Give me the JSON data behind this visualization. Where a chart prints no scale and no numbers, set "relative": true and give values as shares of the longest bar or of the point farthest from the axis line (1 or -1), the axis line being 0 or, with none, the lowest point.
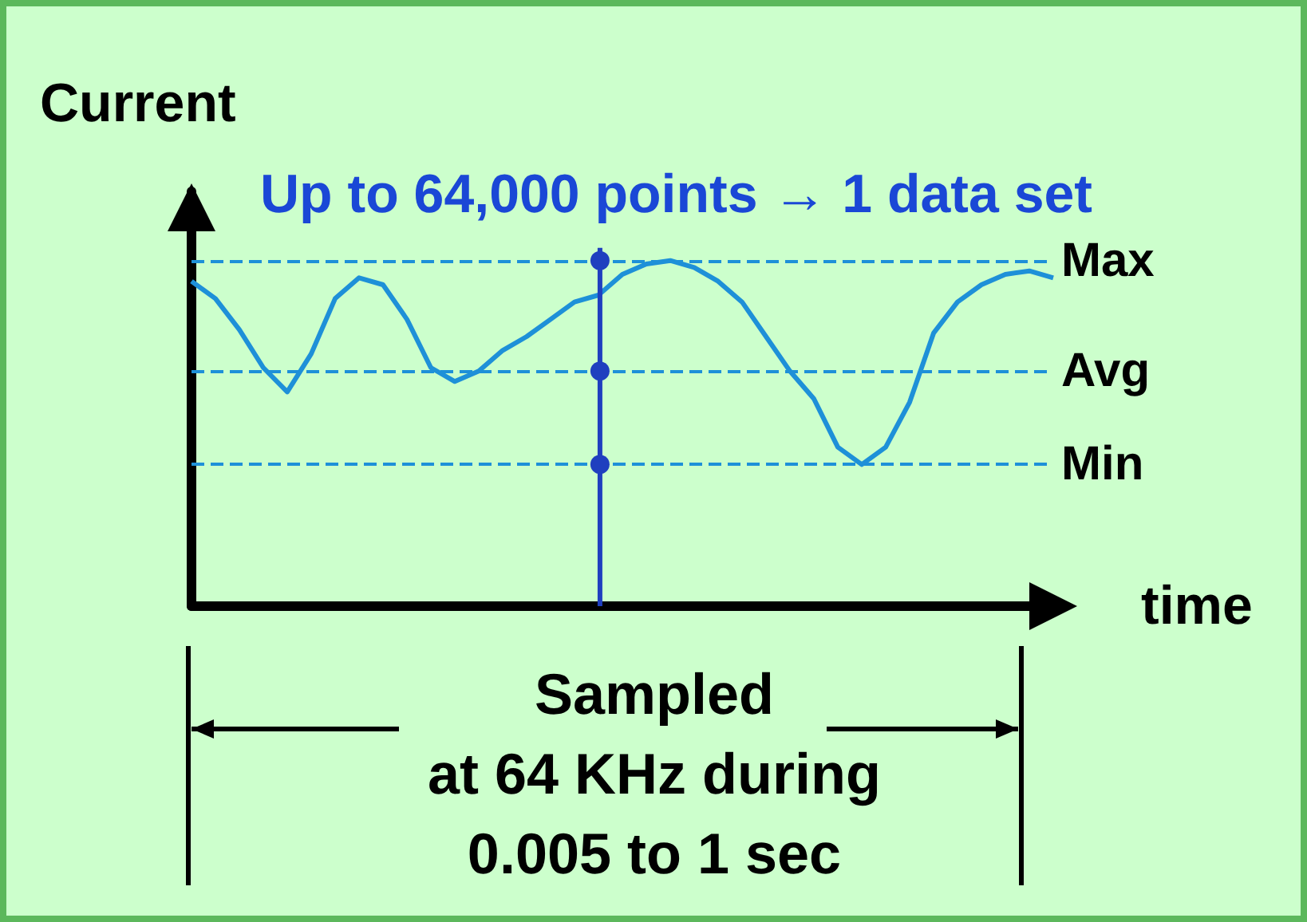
{
  "chart_data": {
    "type": "line",
    "relative": true,
    "subtitle": "Up to 64,000 points → 1 data set",
    "ylabel": "Current",
    "xlabel": "time",
    "categories": [
      null,
      null,
      null,
      null,
      null,
      null,
      null,
      null,
      null,
      null,
      null,
      null,
      null,
      null,
      null,
      null,
      null,
      null,
      null,
      null,
      null,
      null,
      null,
      null,
      null,
      null,
      null,
      null,
      null,
      null,
      null,
      null,
      null,
      null,
      null,
      null,
      null
    ],
    "series": [
      {
        "color": "#1e90d8",
        "values": [
          0.94,
          0.89,
          0.8,
          0.69,
          0.62,
          0.73,
          0.89,
          0.95,
          0.93,
          0.83,
          0.69,
          0.65,
          0.68,
          0.74,
          0.78,
          0.83,
          0.88,
          0.9,
          0.96,
          0.99,
          1,
          0.98,
          0.94,
          0.88,
          0.78,
          0.68,
          0.6,
          0.46,
          0.41,
          0.46,
          0.59,
          0.79,
          0.88,
          0.93,
          0.96,
          0.97,
          0.95
        ]
      }
    ],
    "ref_lines": [
      {
        "axis": "y",
        "value": 1,
        "label": "Max",
        "color": "#1e90d8",
        "line_style": "dashed"
      },
      {
        "axis": "y",
        "value": 0.68,
        "label": "Avg",
        "color": "#1e90d8",
        "line_style": "dashed"
      },
      {
        "axis": "y",
        "value": 0.41,
        "label": "Min",
        "color": "#1e90d8",
        "line_style": "dashed"
      }
    ],
    "annotations": [
      "Sampled\nat 64 KHz during\n0.005 to 1 sec"
    ],
    "grid": false,
    "marker": "none",
    "line_style": "solid"
  }
}
